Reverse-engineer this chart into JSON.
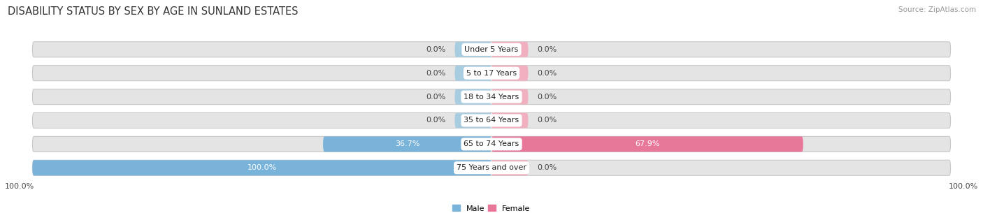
{
  "title": "DISABILITY STATUS BY SEX BY AGE IN SUNLAND ESTATES",
  "source": "Source: ZipAtlas.com",
  "categories": [
    "Under 5 Years",
    "5 to 17 Years",
    "18 to 34 Years",
    "35 to 64 Years",
    "65 to 74 Years",
    "75 Years and over"
  ],
  "male_values": [
    0.0,
    0.0,
    0.0,
    0.0,
    36.7,
    100.0
  ],
  "female_values": [
    0.0,
    0.0,
    0.0,
    0.0,
    67.9,
    0.0
  ],
  "male_color": "#7ab3d9",
  "female_color": "#e8789a",
  "male_stub_color": "#a8cce0",
  "female_stub_color": "#f0b0c0",
  "bar_bg_color": "#e4e4e4",
  "max_val": 100.0,
  "stub_size": 8.0,
  "title_fontsize": 10.5,
  "label_fontsize": 8.0,
  "value_fontsize": 8.0,
  "source_fontsize": 7.5
}
